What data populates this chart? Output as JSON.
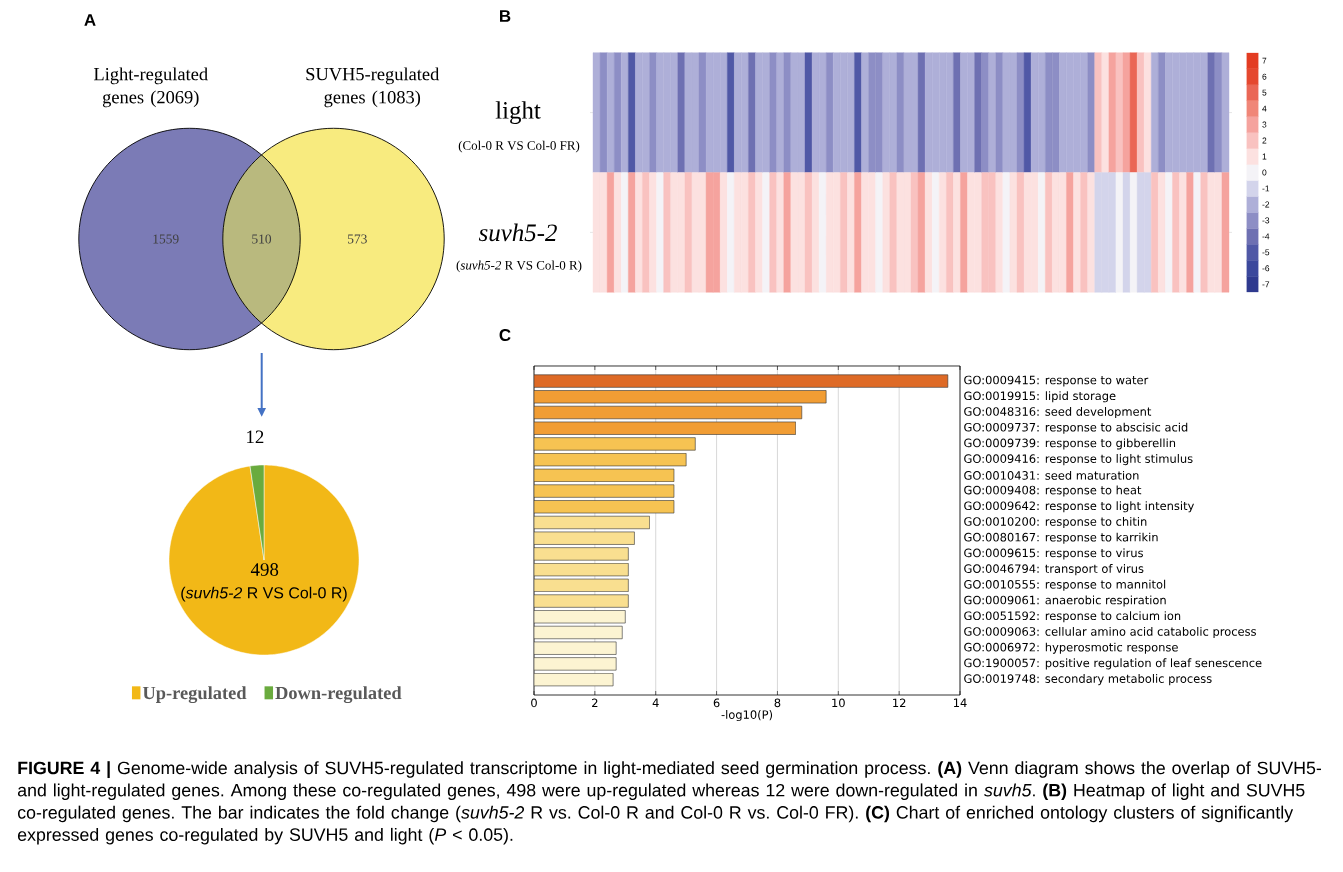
{
  "chart_data": [
    {
      "type": "other",
      "title": "A",
      "categories": [
        "Light-regulated genes (2069)",
        null,
        "SUVH5-regulated genes (1083)"
      ],
      "values": [
        1559,
        510,
        573
      ],
      "colors": [
        "#7b7bb6",
        "#b9b97e",
        "#f8eb7f"
      ],
      "data_labels": true
    },
    {
      "type": "pie",
      "categories": [
        "Up-regulated",
        "Down-regulated"
      ],
      "values": [
        498,
        12
      ],
      "colors": [
        "#f2b817",
        "#6aab3e"
      ],
      "data_labels": true,
      "legend": "bottom",
      "annotations": [
        "(*suvh5-2* R VS Col-0 R)"
      ]
    },
    {
      "type": "heatmap",
      "title": "B",
      "categories": [
        null,
        null,
        null,
        null,
        null,
        null,
        null,
        null,
        null,
        null,
        null,
        null,
        null,
        null,
        null,
        null,
        null,
        null,
        null,
        null,
        null,
        null,
        null,
        null,
        null,
        null,
        null,
        null,
        null,
        null,
        null,
        null,
        null,
        null,
        null,
        null,
        null,
        null,
        null,
        null,
        null,
        null,
        null,
        null,
        null,
        null,
        null,
        null,
        null,
        null,
        null,
        null,
        null,
        null,
        null,
        null,
        null,
        null,
        null,
        null,
        null,
        null,
        null,
        null,
        null,
        null,
        null,
        null,
        null,
        null,
        null,
        null,
        null,
        null,
        null,
        null,
        null,
        null,
        null,
        null,
        null,
        null,
        null,
        null,
        null,
        null,
        null,
        null,
        null,
        null
      ],
      "y_categories": [
        "light",
        "suvh5-2"
      ],
      "cells": [
        [
          -2,
          -3,
          -2,
          -3,
          -2,
          -5,
          -2,
          -2,
          -3,
          -2,
          -2,
          -2,
          -4,
          -2,
          -2,
          -3,
          -2,
          -2,
          -2,
          -5,
          -2,
          -2,
          -4,
          -2,
          -2,
          -3,
          -2,
          -3,
          -2,
          -2,
          -5,
          -2,
          -2,
          -3,
          -2,
          -2,
          -2,
          -5,
          -2,
          -3,
          -3,
          -2,
          -2,
          -3,
          -2,
          -2,
          -4,
          -2,
          -2,
          -2,
          -2,
          -4,
          -2,
          -2,
          -4,
          -3,
          -2,
          -3,
          -2,
          -2,
          -3,
          -5,
          -2,
          -2,
          -3,
          -3,
          -2,
          -2,
          -2,
          -2,
          -3,
          2,
          1,
          3,
          2,
          3,
          5,
          2,
          1,
          -2,
          -3,
          -2,
          -2,
          -2,
          -2,
          -2,
          -2,
          -4,
          -3,
          -2
        ],
        [
          1,
          1,
          3,
          1,
          0,
          3,
          1,
          2,
          1,
          0,
          2,
          1,
          1,
          2,
          1,
          1,
          3,
          3,
          1,
          0,
          1,
          1,
          2,
          1,
          0,
          2,
          1,
          3,
          1,
          1,
          2,
          1,
          0,
          1,
          1,
          2,
          1,
          3,
          1,
          1,
          0,
          1,
          2,
          1,
          1,
          2,
          3,
          1,
          0,
          1,
          2,
          1,
          3,
          1,
          1,
          2,
          2,
          1,
          0,
          1,
          2,
          1,
          1,
          0,
          2,
          1,
          1,
          3,
          1,
          2,
          1,
          -1,
          -1,
          -1,
          0,
          -1,
          0,
          -1,
          -1,
          2,
          1,
          0,
          2,
          1,
          3,
          0,
          2,
          1,
          1,
          3
        ]
      ],
      "clim": [
        -7.5,
        7.5
      ],
      "cticks": [
        -7,
        -6,
        -5,
        -4,
        -3,
        -2,
        -1,
        0,
        1,
        2,
        3,
        4,
        5,
        6,
        7
      ],
      "annotations": [
        "(Col-0 R VS Col-0 FR)",
        "(*suvh5-2* R VS Col-0 R)"
      ]
    },
    {
      "type": "bar",
      "orientation": "horizontal",
      "title": "C",
      "categories": [
        "GO:0009415: response to water",
        "GO:0019915: lipid storage",
        "GO:0048316: seed development",
        "GO:0009737: response to abscisic acid",
        "GO:0009739: response to gibberellin",
        "GO:0009416: response to light stimulus",
        "GO:0010431: seed maturation",
        "GO:0009408: response to heat",
        "GO:0009642: response to light intensity",
        "GO:0010200: response to chitin",
        "GO:0080167: response to karrikin",
        "GO:0009615: response to virus",
        "GO:0046794: transport of virus",
        "GO:0010555: response to mannitol",
        "GO:0009061: anaerobic respiration",
        "GO:0051592: response to calcium ion",
        "GO:0009063: cellular amino acid catabolic process",
        "GO:0006972: hyperosmotic response",
        "GO:1900057: positive regulation of leaf senescence",
        "GO:0019748: secondary metabolic process"
      ],
      "values": [
        13.6,
        9.6,
        8.8,
        8.6,
        5.3,
        5.0,
        4.6,
        4.6,
        4.6,
        3.8,
        3.3,
        3.1,
        3.1,
        3.1,
        3.1,
        3.0,
        2.9,
        2.7,
        2.7,
        2.6
      ],
      "colors": [
        "#de6a26",
        "#f19d34",
        "#f19d34",
        "#f19d34",
        "#f6c352",
        "#f6c352",
        "#f6c352",
        "#f6c352",
        "#f6c352",
        "#f9df90",
        "#f9df90",
        "#f9df90",
        "#f9df90",
        "#f9df90",
        "#f9df90",
        "#fcf4d2",
        "#fcf4d2",
        "#fcf4d2",
        "#fcf4d2",
        "#fcf4d2"
      ],
      "xlabel": "-log10(P)",
      "xlim": [
        0,
        14
      ],
      "xticks": [
        0,
        2,
        4,
        6,
        8,
        10,
        12,
        14
      ],
      "grid": "x"
    },
    {
      "type": "other",
      "annotations": [
        "**FIGURE 4 |** Genome-wide analysis of SUVH5-regulated transcriptome in light-mediated seed germination process. **(A)** Venn diagram shows the overlap of SUVH5- and light-regulated genes. Among these co-regulated genes, 498 were up-regulated whereas 12 were down-regulated in *suvh5*. **(B)** Heatmap of light and SUVH5 co-regulated genes. The bar indicates the fold change (*suvh5-2* R vs. Col-0 R and Col-0 R vs. Col-0 FR). **(C)** Chart of enriched ontology clusters of significantly expressed genes co-regulated by SUVH5 and light (*P* < 0.05)."
      ]
    }
  ]
}
